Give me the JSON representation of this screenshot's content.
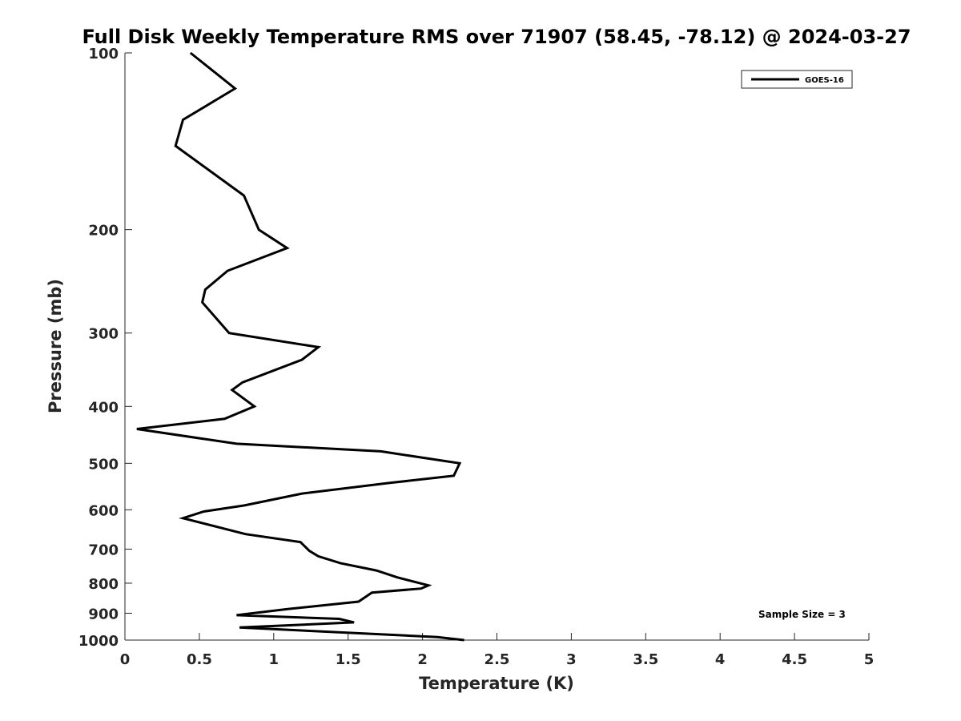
{
  "chart_data": {
    "type": "line",
    "title": "Full Disk Weekly Temperature RMS over 71907 (58.45, -78.12) @ 2024-03-27",
    "xlabel": "Temperature (K)",
    "ylabel": "Pressure (mb)",
    "xlim": [
      0,
      5
    ],
    "ylim": [
      100,
      1000
    ],
    "yscale": "log",
    "y_reversed": true,
    "x_ticks": [
      "0",
      "0.5",
      "1",
      "1.5",
      "2",
      "2.5",
      "3",
      "3.5",
      "4",
      "4.5",
      "5"
    ],
    "y_ticks": [
      "100",
      "200",
      "300",
      "400",
      "500",
      "600",
      "700",
      "800",
      "900",
      "1000"
    ],
    "grid": false,
    "legend": {
      "position": "top-right"
    },
    "series": [
      {
        "name": "GOES-16",
        "color": "#000000",
        "points": [
          [
            0.44,
            100
          ],
          [
            0.74,
            115
          ],
          [
            0.39,
            130
          ],
          [
            0.34,
            144
          ],
          [
            0.8,
            175
          ],
          [
            0.9,
            200
          ],
          [
            1.09,
            215
          ],
          [
            0.69,
            235
          ],
          [
            0.54,
            253
          ],
          [
            0.52,
            266
          ],
          [
            0.7,
            300
          ],
          [
            1.3,
            317
          ],
          [
            1.19,
            333
          ],
          [
            0.79,
            364
          ],
          [
            0.72,
            375
          ],
          [
            0.87,
            400
          ],
          [
            0.67,
            420
          ],
          [
            0.08,
            437
          ],
          [
            0.75,
            463
          ],
          [
            1.72,
            477
          ],
          [
            2.25,
            500
          ],
          [
            2.21,
            525
          ],
          [
            1.78,
            540
          ],
          [
            1.19,
            563
          ],
          [
            0.8,
            590
          ],
          [
            0.53,
            604
          ],
          [
            0.39,
            620
          ],
          [
            0.81,
            660
          ],
          [
            1.18,
            681
          ],
          [
            1.24,
            705
          ],
          [
            1.3,
            720
          ],
          [
            1.45,
            740
          ],
          [
            1.69,
            761
          ],
          [
            1.83,
            782
          ],
          [
            2.04,
            807
          ],
          [
            1.99,
            817
          ],
          [
            1.66,
            830
          ],
          [
            1.57,
            860
          ],
          [
            1.1,
            885
          ],
          [
            0.75,
            907
          ],
          [
            1.44,
            920
          ],
          [
            1.54,
            933
          ],
          [
            0.77,
            952
          ],
          [
            2.1,
            988
          ],
          [
            2.28,
            1000
          ]
        ]
      }
    ],
    "annotations": [
      "Sample Size = 3"
    ]
  }
}
